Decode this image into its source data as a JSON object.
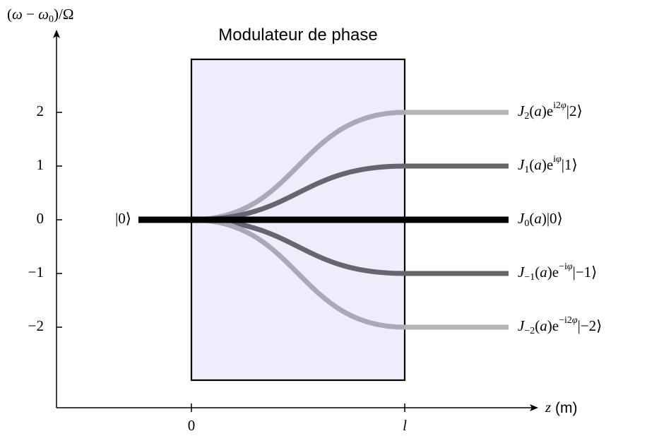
{
  "title": "Modulateur de phase",
  "y_axis": {
    "label": [
      {
        "text": "("
      },
      {
        "italic": "ω"
      },
      {
        "text": " − "
      },
      {
        "italic": "ω"
      },
      {
        "sub": "0"
      },
      {
        "text": ")/Ω"
      }
    ],
    "ticks": [
      "2",
      "1",
      "0",
      "−1",
      "−2"
    ]
  },
  "x_axis": {
    "label": [
      {
        "italic": "z"
      },
      {
        "sans": " (m)"
      }
    ],
    "ticks": [
      "0",
      "l"
    ]
  },
  "input_label": "|0⟩",
  "outputs": [
    [
      {
        "italic": "J"
      },
      {
        "sub": "2"
      },
      {
        "text": "("
      },
      {
        "italic": "a"
      },
      {
        "text": ")e"
      },
      {
        "sup": "i2"
      },
      {
        "sup_italic": "φ"
      },
      {
        "text": "|2⟩"
      }
    ],
    [
      {
        "italic": "J"
      },
      {
        "sub": "1"
      },
      {
        "text": "("
      },
      {
        "italic": "a"
      },
      {
        "text": ")e"
      },
      {
        "sup": "i"
      },
      {
        "sup_italic": "φ"
      },
      {
        "text": "|1⟩"
      }
    ],
    [
      {
        "italic": "J"
      },
      {
        "sub": "0"
      },
      {
        "text": "("
      },
      {
        "italic": "a"
      },
      {
        "text": ")|0⟩"
      }
    ],
    [
      {
        "italic": "J"
      },
      {
        "sub": "−1"
      },
      {
        "text": "("
      },
      {
        "italic": "a"
      },
      {
        "text": ")e"
      },
      {
        "sup": "−i"
      },
      {
        "sup_italic": "φ"
      },
      {
        "text": "|−1⟩"
      }
    ],
    [
      {
        "italic": "J"
      },
      {
        "sub": "−2"
      },
      {
        "text": "("
      },
      {
        "italic": "a"
      },
      {
        "text": ")e"
      },
      {
        "sup": "−i2"
      },
      {
        "sup_italic": "φ"
      },
      {
        "text": "|−2⟩"
      }
    ]
  ]
}
